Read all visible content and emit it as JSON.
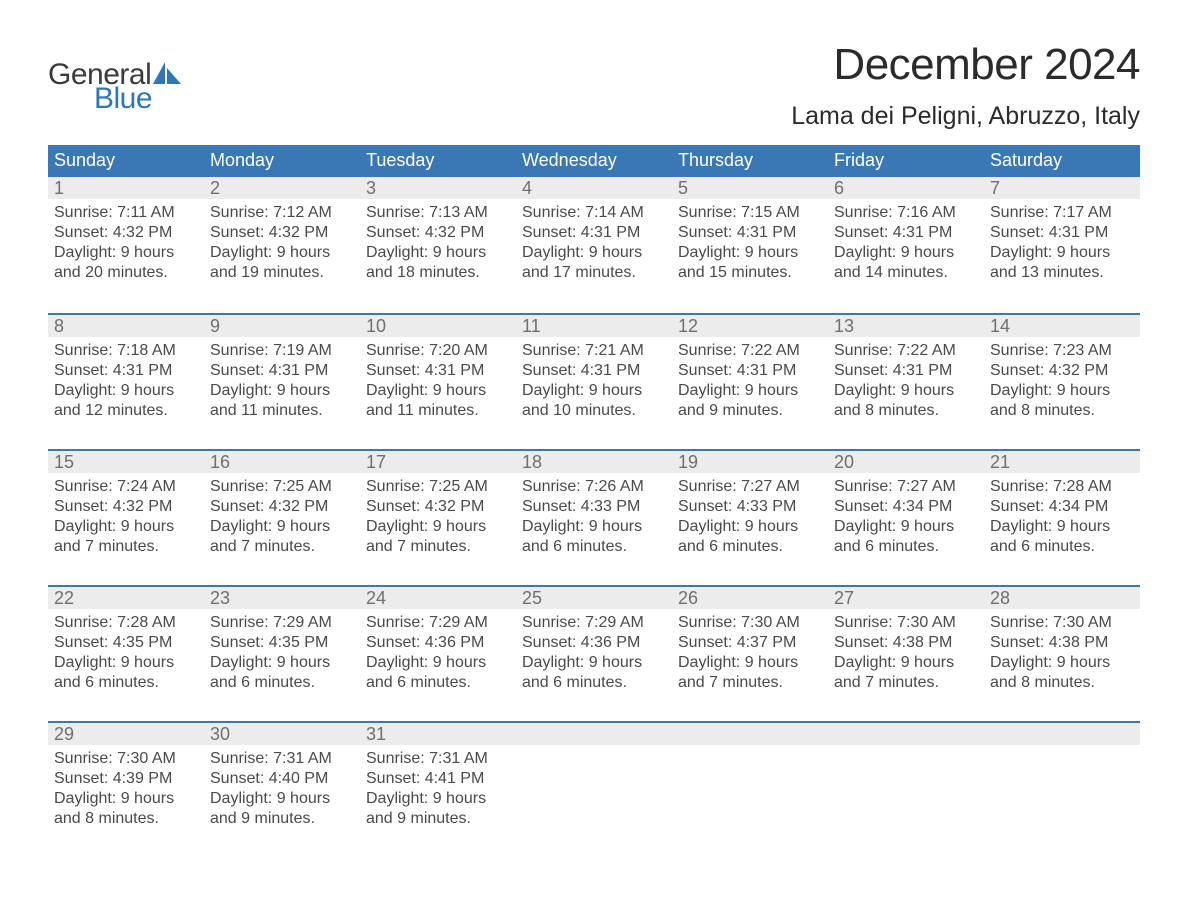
{
  "brand": {
    "text_general": "General",
    "text_blue": "Blue",
    "sail_color": "#2f76b8",
    "text_dark": "#3b3b3b"
  },
  "title": "December 2024",
  "location": "Lama dei Peligni, Abruzzo, Italy",
  "colors": {
    "header_bg": "#3a78b5",
    "header_text": "#ffffff",
    "week_border": "#3a78b5",
    "daynum_bg": "#ececec",
    "daynum_text": "#6f6f6f",
    "body_text": "#4a4a4a",
    "page_bg": "#ffffff"
  },
  "typography": {
    "title_fontsize": 44,
    "location_fontsize": 25,
    "weekday_fontsize": 18,
    "daynum_fontsize": 18,
    "body_fontsize": 16,
    "logo_fontsize": 30
  },
  "weekdays": [
    "Sunday",
    "Monday",
    "Tuesday",
    "Wednesday",
    "Thursday",
    "Friday",
    "Saturday"
  ],
  "weeks": [
    [
      {
        "n": "1",
        "sunrise": "7:11 AM",
        "sunset": "4:32 PM",
        "dl1": "Daylight: 9 hours",
        "dl2": "and 20 minutes."
      },
      {
        "n": "2",
        "sunrise": "7:12 AM",
        "sunset": "4:32 PM",
        "dl1": "Daylight: 9 hours",
        "dl2": "and 19 minutes."
      },
      {
        "n": "3",
        "sunrise": "7:13 AM",
        "sunset": "4:32 PM",
        "dl1": "Daylight: 9 hours",
        "dl2": "and 18 minutes."
      },
      {
        "n": "4",
        "sunrise": "7:14 AM",
        "sunset": "4:31 PM",
        "dl1": "Daylight: 9 hours",
        "dl2": "and 17 minutes."
      },
      {
        "n": "5",
        "sunrise": "7:15 AM",
        "sunset": "4:31 PM",
        "dl1": "Daylight: 9 hours",
        "dl2": "and 15 minutes."
      },
      {
        "n": "6",
        "sunrise": "7:16 AM",
        "sunset": "4:31 PM",
        "dl1": "Daylight: 9 hours",
        "dl2": "and 14 minutes."
      },
      {
        "n": "7",
        "sunrise": "7:17 AM",
        "sunset": "4:31 PM",
        "dl1": "Daylight: 9 hours",
        "dl2": "and 13 minutes."
      }
    ],
    [
      {
        "n": "8",
        "sunrise": "7:18 AM",
        "sunset": "4:31 PM",
        "dl1": "Daylight: 9 hours",
        "dl2": "and 12 minutes."
      },
      {
        "n": "9",
        "sunrise": "7:19 AM",
        "sunset": "4:31 PM",
        "dl1": "Daylight: 9 hours",
        "dl2": "and 11 minutes."
      },
      {
        "n": "10",
        "sunrise": "7:20 AM",
        "sunset": "4:31 PM",
        "dl1": "Daylight: 9 hours",
        "dl2": "and 11 minutes."
      },
      {
        "n": "11",
        "sunrise": "7:21 AM",
        "sunset": "4:31 PM",
        "dl1": "Daylight: 9 hours",
        "dl2": "and 10 minutes."
      },
      {
        "n": "12",
        "sunrise": "7:22 AM",
        "sunset": "4:31 PM",
        "dl1": "Daylight: 9 hours",
        "dl2": "and 9 minutes."
      },
      {
        "n": "13",
        "sunrise": "7:22 AM",
        "sunset": "4:31 PM",
        "dl1": "Daylight: 9 hours",
        "dl2": "and 8 minutes."
      },
      {
        "n": "14",
        "sunrise": "7:23 AM",
        "sunset": "4:32 PM",
        "dl1": "Daylight: 9 hours",
        "dl2": "and 8 minutes."
      }
    ],
    [
      {
        "n": "15",
        "sunrise": "7:24 AM",
        "sunset": "4:32 PM",
        "dl1": "Daylight: 9 hours",
        "dl2": "and 7 minutes."
      },
      {
        "n": "16",
        "sunrise": "7:25 AM",
        "sunset": "4:32 PM",
        "dl1": "Daylight: 9 hours",
        "dl2": "and 7 minutes."
      },
      {
        "n": "17",
        "sunrise": "7:25 AM",
        "sunset": "4:32 PM",
        "dl1": "Daylight: 9 hours",
        "dl2": "and 7 minutes."
      },
      {
        "n": "18",
        "sunrise": "7:26 AM",
        "sunset": "4:33 PM",
        "dl1": "Daylight: 9 hours",
        "dl2": "and 6 minutes."
      },
      {
        "n": "19",
        "sunrise": "7:27 AM",
        "sunset": "4:33 PM",
        "dl1": "Daylight: 9 hours",
        "dl2": "and 6 minutes."
      },
      {
        "n": "20",
        "sunrise": "7:27 AM",
        "sunset": "4:34 PM",
        "dl1": "Daylight: 9 hours",
        "dl2": "and 6 minutes."
      },
      {
        "n": "21",
        "sunrise": "7:28 AM",
        "sunset": "4:34 PM",
        "dl1": "Daylight: 9 hours",
        "dl2": "and 6 minutes."
      }
    ],
    [
      {
        "n": "22",
        "sunrise": "7:28 AM",
        "sunset": "4:35 PM",
        "dl1": "Daylight: 9 hours",
        "dl2": "and 6 minutes."
      },
      {
        "n": "23",
        "sunrise": "7:29 AM",
        "sunset": "4:35 PM",
        "dl1": "Daylight: 9 hours",
        "dl2": "and 6 minutes."
      },
      {
        "n": "24",
        "sunrise": "7:29 AM",
        "sunset": "4:36 PM",
        "dl1": "Daylight: 9 hours",
        "dl2": "and 6 minutes."
      },
      {
        "n": "25",
        "sunrise": "7:29 AM",
        "sunset": "4:36 PM",
        "dl1": "Daylight: 9 hours",
        "dl2": "and 6 minutes."
      },
      {
        "n": "26",
        "sunrise": "7:30 AM",
        "sunset": "4:37 PM",
        "dl1": "Daylight: 9 hours",
        "dl2": "and 7 minutes."
      },
      {
        "n": "27",
        "sunrise": "7:30 AM",
        "sunset": "4:38 PM",
        "dl1": "Daylight: 9 hours",
        "dl2": "and 7 minutes."
      },
      {
        "n": "28",
        "sunrise": "7:30 AM",
        "sunset": "4:38 PM",
        "dl1": "Daylight: 9 hours",
        "dl2": "and 8 minutes."
      }
    ],
    [
      {
        "n": "29",
        "sunrise": "7:30 AM",
        "sunset": "4:39 PM",
        "dl1": "Daylight: 9 hours",
        "dl2": "and 8 minutes."
      },
      {
        "n": "30",
        "sunrise": "7:31 AM",
        "sunset": "4:40 PM",
        "dl1": "Daylight: 9 hours",
        "dl2": "and 9 minutes."
      },
      {
        "n": "31",
        "sunrise": "7:31 AM",
        "sunset": "4:41 PM",
        "dl1": "Daylight: 9 hours",
        "dl2": "and 9 minutes."
      },
      {
        "empty": true
      },
      {
        "empty": true
      },
      {
        "empty": true
      },
      {
        "empty": true
      }
    ]
  ],
  "labels": {
    "sunrise_prefix": "Sunrise: ",
    "sunset_prefix": "Sunset: "
  }
}
